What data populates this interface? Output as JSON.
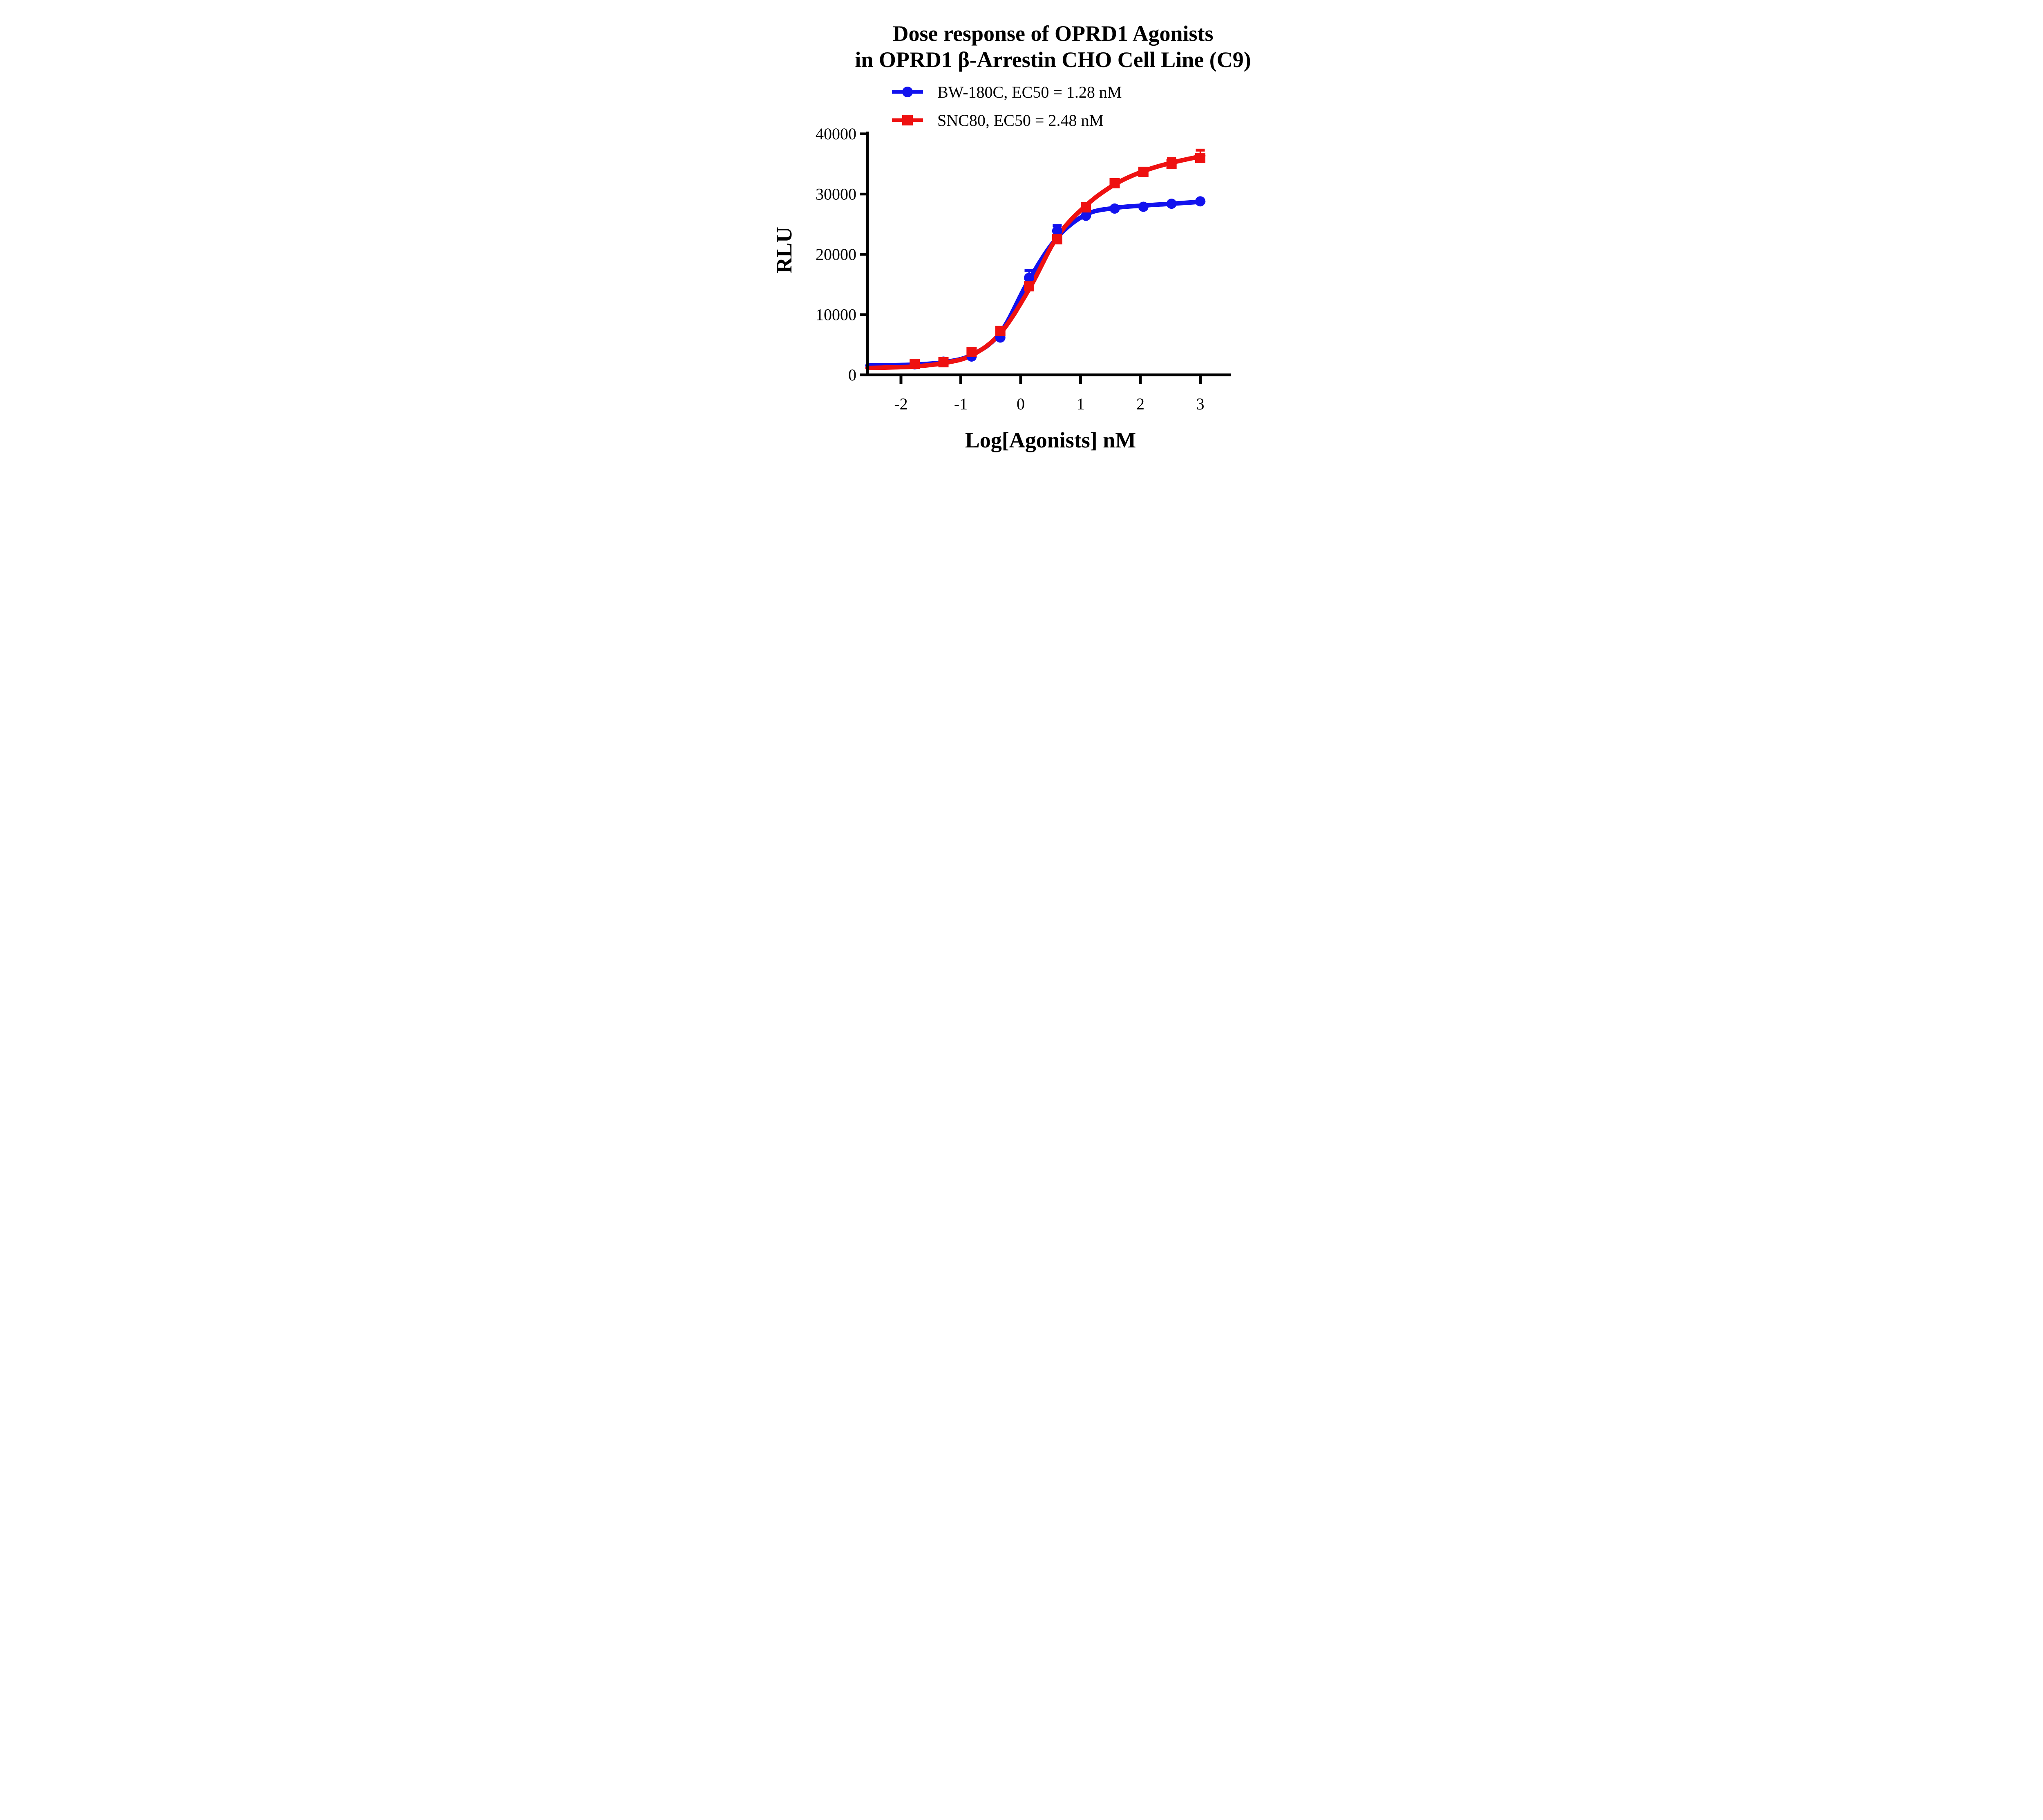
{
  "title": {
    "line1": "Dose response of OPRD1 Agonists",
    "line2": "in OPRD1 β-Arrestin CHO Cell Line (C9)"
  },
  "colors": {
    "series_blue": "#1212EE",
    "series_red": "#EE1111",
    "axis": "#000000",
    "background": "#FFFFFF"
  },
  "chart_data": {
    "type": "scatter",
    "title": "Dose response of OPRD1 Agonists in OPRD1 β-Arrestin CHO Cell Line (C9)",
    "xlabel": "Log[Agonists] nM",
    "ylabel": "RLU",
    "x_axis": {
      "label": "Log[Agonists] nM",
      "ticks": [
        -2,
        -1,
        0,
        1,
        2,
        3
      ],
      "range": [
        -2.56,
        3.51
      ]
    },
    "y_axis": {
      "label": "RLU",
      "ticks": [
        0,
        10000,
        20000,
        30000,
        40000
      ],
      "range": [
        0,
        40000
      ]
    },
    "legend_position": "top",
    "grid": false,
    "series": [
      {
        "name": "BW-180C",
        "legend_label": "BW-180C, EC50 = 1.28 nM",
        "ec50_nM": 1.28,
        "color": "#1212EE",
        "marker": "circle",
        "points": [
          {
            "x": -1.77,
            "y": 1750
          },
          {
            "x": -1.29,
            "y": 2200
          },
          {
            "x": -0.82,
            "y": 3050
          },
          {
            "x": -0.34,
            "y": 6200
          },
          {
            "x": 0.14,
            "y": 16100,
            "sem": 1200
          },
          {
            "x": 0.61,
            "y": 23900,
            "sem": 900
          },
          {
            "x": 1.09,
            "y": 26400
          },
          {
            "x": 1.57,
            "y": 27600
          },
          {
            "x": 2.05,
            "y": 27900
          },
          {
            "x": 2.52,
            "y": 28400
          },
          {
            "x": 3.0,
            "y": 28800
          }
        ],
        "curve": [
          [
            -2.56,
            1550
          ],
          [
            -2.1,
            1630
          ],
          [
            -1.77,
            1720
          ],
          [
            -1.29,
            2100
          ],
          [
            -0.82,
            3300
          ],
          [
            -0.34,
            7000
          ],
          [
            0.14,
            15800
          ],
          [
            0.61,
            22800
          ],
          [
            1.09,
            26600
          ],
          [
            1.57,
            27700
          ],
          [
            2.05,
            28100
          ],
          [
            2.52,
            28400
          ],
          [
            3.05,
            28750
          ]
        ]
      },
      {
        "name": "SNC80",
        "legend_label": "SNC80, EC50 = 2.48 nM",
        "ec50_nM": 2.48,
        "color": "#EE1111",
        "marker": "square",
        "points": [
          {
            "x": -1.77,
            "y": 1830
          },
          {
            "x": -1.29,
            "y": 2100
          },
          {
            "x": -0.82,
            "y": 3800
          },
          {
            "x": -0.34,
            "y": 7300
          },
          {
            "x": 0.14,
            "y": 14700
          },
          {
            "x": 0.61,
            "y": 22500
          },
          {
            "x": 1.09,
            "y": 27800
          },
          {
            "x": 1.57,
            "y": 31800
          },
          {
            "x": 2.05,
            "y": 33700
          },
          {
            "x": 2.52,
            "y": 35000,
            "sem": 900
          },
          {
            "x": 3.0,
            "y": 36000,
            "sem": 1300
          }
        ],
        "curve": [
          [
            -2.56,
            1150
          ],
          [
            -2.1,
            1260
          ],
          [
            -1.77,
            1400
          ],
          [
            -1.29,
            1950
          ],
          [
            -0.82,
            3250
          ],
          [
            -0.34,
            6900
          ],
          [
            0.14,
            14200
          ],
          [
            0.61,
            22900
          ],
          [
            1.09,
            28100
          ],
          [
            1.57,
            31600
          ],
          [
            2.05,
            33800
          ],
          [
            2.52,
            35200
          ],
          [
            3.05,
            36350
          ]
        ]
      }
    ]
  }
}
